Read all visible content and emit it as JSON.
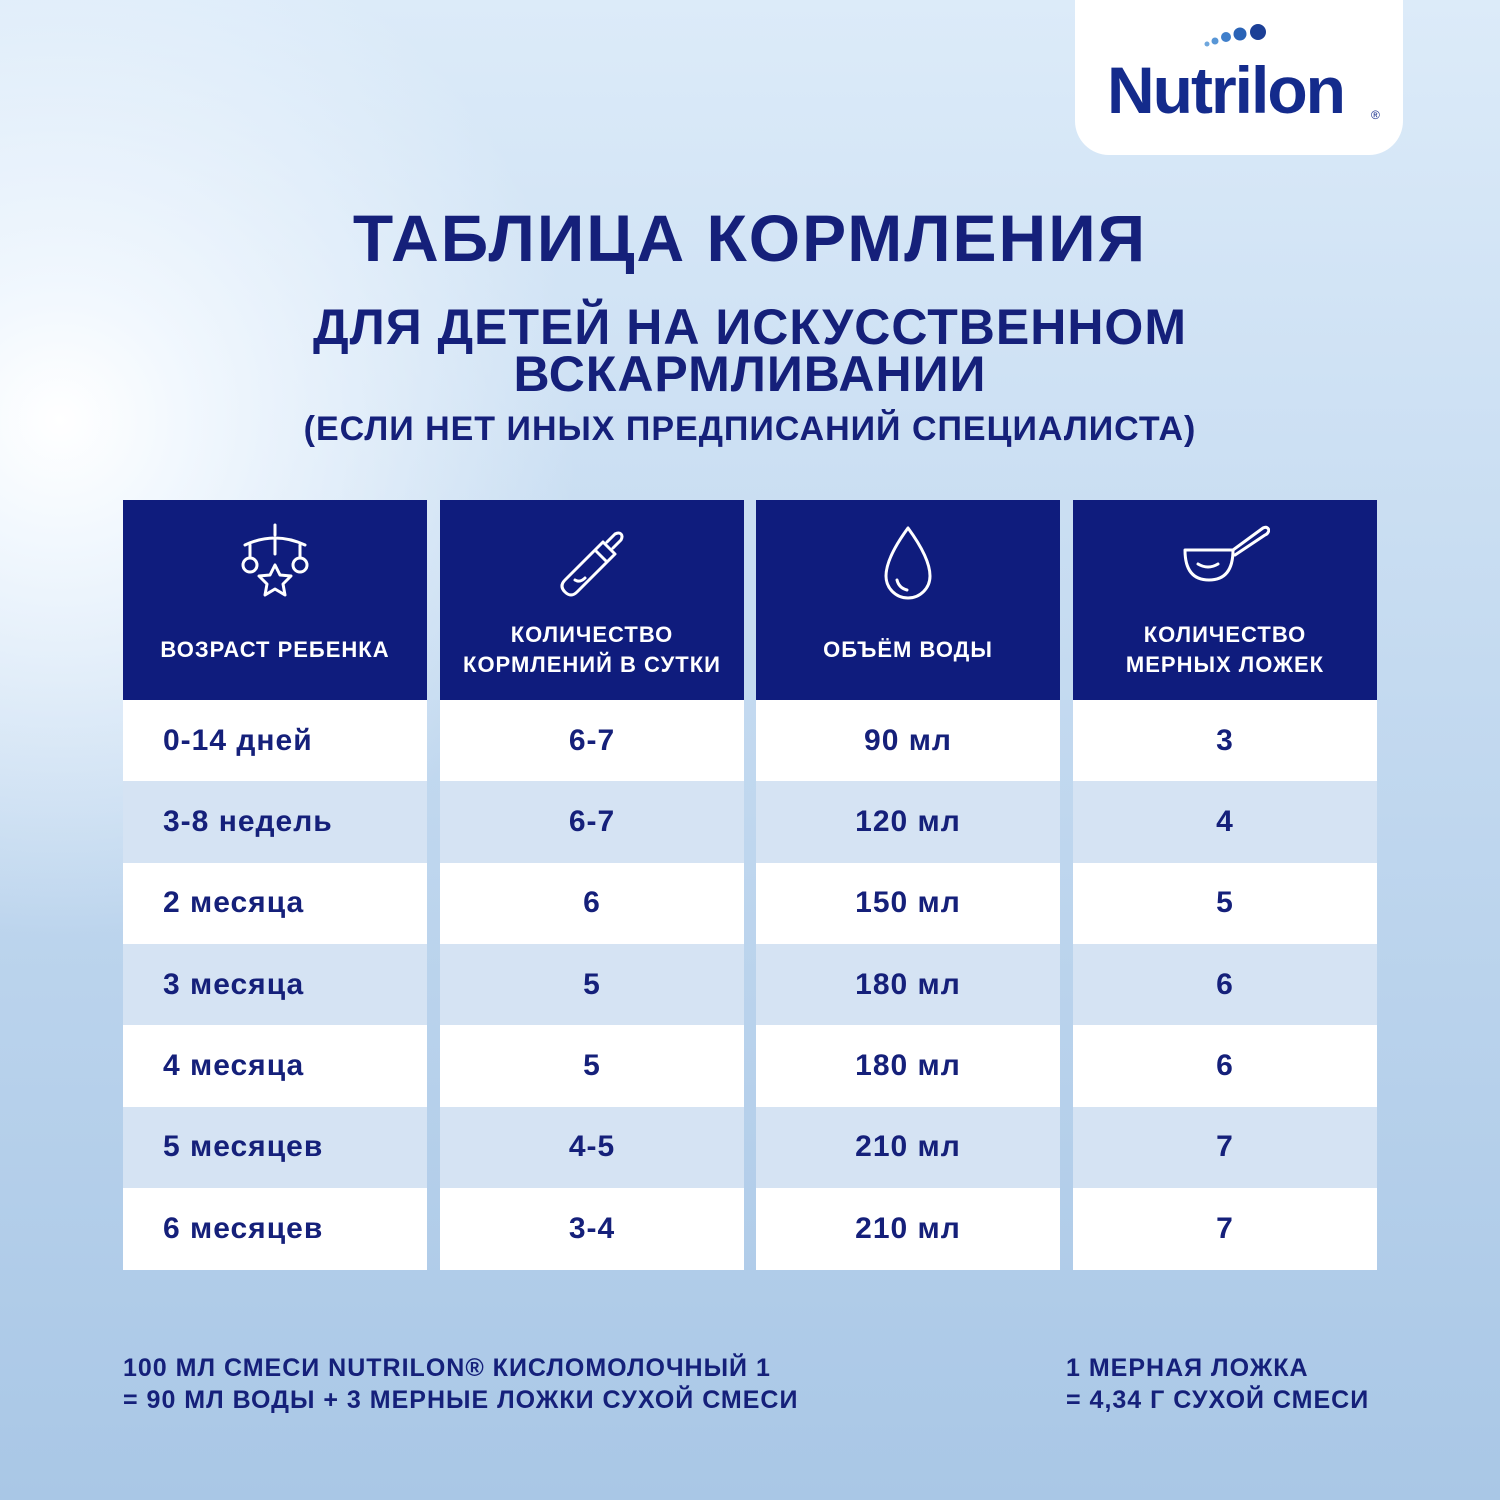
{
  "logo": {
    "name": "Nutrilon",
    "mark": "®"
  },
  "title": "ТАБЛИЦА КОРМЛЕНИЯ",
  "subtitle": [
    "ДЛЯ ДЕТЕЙ НА ИСКУССТВЕННОМ",
    "ВСКАРМЛИВАНИИ"
  ],
  "note": "(ЕСЛИ НЕТ ИНЫХ ПРЕДПИСАНИЙ СПЕЦИАЛИСТА)",
  "table": {
    "headers": [
      "ВОЗРАСТ РЕБЕНКА",
      "КОЛИЧЕСТВО КОРМЛЕНИЙ В СУТКИ",
      "ОБЪЁМ ВОДЫ",
      "КОЛИЧЕСТВО МЕРНЫХ ЛОЖЕК"
    ],
    "rows": [
      [
        "0-14 дней",
        "6-7",
        "90 мл",
        "3"
      ],
      [
        "3-8 недель",
        "6-7",
        "120 мл",
        "4"
      ],
      [
        "2 месяца",
        "6",
        "150 мл",
        "5"
      ],
      [
        "3 месяца",
        "5",
        "180 мл",
        "6"
      ],
      [
        "4 месяца",
        "5",
        "180 мл",
        "6"
      ],
      [
        "5 месяцев",
        "4-5",
        "210 мл",
        "7"
      ],
      [
        "6 месяцев",
        "3-4",
        "210 мл",
        "7"
      ]
    ]
  },
  "footer": {
    "left": [
      "100 МЛ СМЕСИ NUTRILON® КИСЛОМОЛОЧНЫЙ 1",
      "= 90 МЛ ВОДЫ + 3 МЕРНЫЕ ЛОЖКИ СУХОЙ СМЕСИ"
    ],
    "right": [
      "1 МЕРНАЯ ЛОЖКА",
      "= 4,34 Г СУХОЙ СМЕСИ"
    ]
  }
}
